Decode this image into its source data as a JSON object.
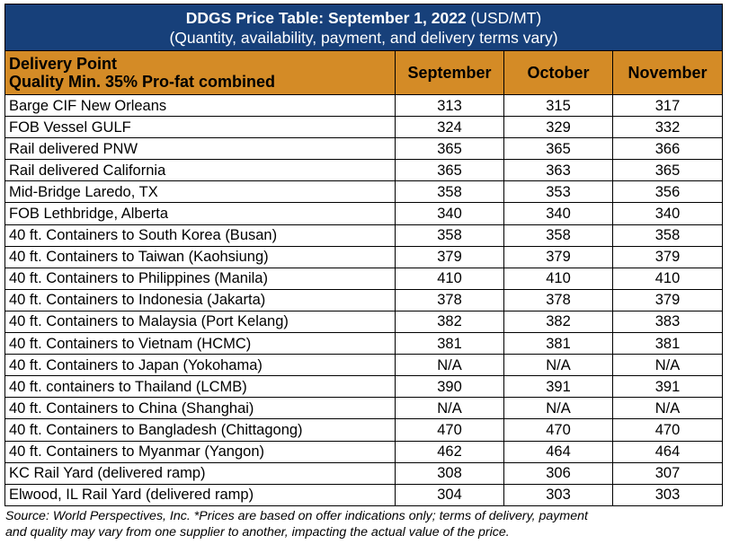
{
  "title": {
    "bold": "DDGS Price Table: September 1, 2022",
    "unit": " (USD/MT)",
    "subtitle": "(Quantity, availability, payment, and delivery terms vary)"
  },
  "header": {
    "line1": "Delivery Point",
    "line2": "Quality Min. 35% Pro-fat combined",
    "months": [
      "September",
      "October",
      "November"
    ]
  },
  "rows": [
    {
      "location": "Barge CIF New Orleans",
      "values": [
        "313",
        "315",
        "317"
      ]
    },
    {
      "location": "FOB Vessel GULF",
      "values": [
        "324",
        "329",
        "332"
      ]
    },
    {
      "location": "Rail delivered PNW",
      "values": [
        "365",
        "365",
        "366"
      ]
    },
    {
      "location": "Rail delivered California",
      "values": [
        "365",
        "363",
        "365"
      ]
    },
    {
      "location": "Mid-Bridge Laredo, TX",
      "values": [
        "358",
        "353",
        "356"
      ]
    },
    {
      "location": "FOB Lethbridge, Alberta",
      "values": [
        "340",
        "340",
        "340"
      ]
    },
    {
      "location": "40 ft. Containers to South Korea (Busan)",
      "values": [
        "358",
        "358",
        "358"
      ]
    },
    {
      "location": "40 ft. Containers to Taiwan (Kaohsiung)",
      "values": [
        "379",
        "379",
        "379"
      ]
    },
    {
      "location": "40 ft. Containers to Philippines (Manila)",
      "values": [
        "410",
        "410",
        "410"
      ]
    },
    {
      "location": "40 ft. Containers to Indonesia (Jakarta)",
      "values": [
        "378",
        "378",
        "379"
      ]
    },
    {
      "location": "40 ft. Containers to Malaysia (Port Kelang)",
      "values": [
        "382",
        "382",
        "383"
      ]
    },
    {
      "location": "40 ft. Containers to Vietnam (HCMC)",
      "values": [
        "381",
        "381",
        "381"
      ]
    },
    {
      "location": "40 ft. Containers to Japan (Yokohama)",
      "values": [
        "N/A",
        "N/A",
        "N/A"
      ]
    },
    {
      "location": "40 ft. containers to Thailand (LCMB)",
      "values": [
        "390",
        "391",
        "391"
      ]
    },
    {
      "location": "40 ft. Containers to China (Shanghai)",
      "values": [
        "N/A",
        "N/A",
        "N/A"
      ]
    },
    {
      "location": "40 ft. Containers to Bangladesh (Chittagong)",
      "values": [
        "470",
        "470",
        "470"
      ]
    },
    {
      "location": "40 ft. Containers to Myanmar (Yangon)",
      "values": [
        "462",
        "464",
        "464"
      ]
    },
    {
      "location": "KC Rail Yard (delivered ramp)",
      "values": [
        "308",
        "306",
        "307"
      ]
    },
    {
      "location": "Elwood, IL Rail Yard (delivered ramp)",
      "values": [
        "304",
        "303",
        "303"
      ]
    }
  ],
  "footnote": {
    "line1": "Source: World Perspectives, Inc. *Prices are based on offer indications only; terms of delivery, payment",
    "line2": "and quality may vary from one supplier to another, impacting the actual value of the price."
  },
  "colors": {
    "title_bg": "#17407a",
    "header_bg": "#d48b26"
  }
}
